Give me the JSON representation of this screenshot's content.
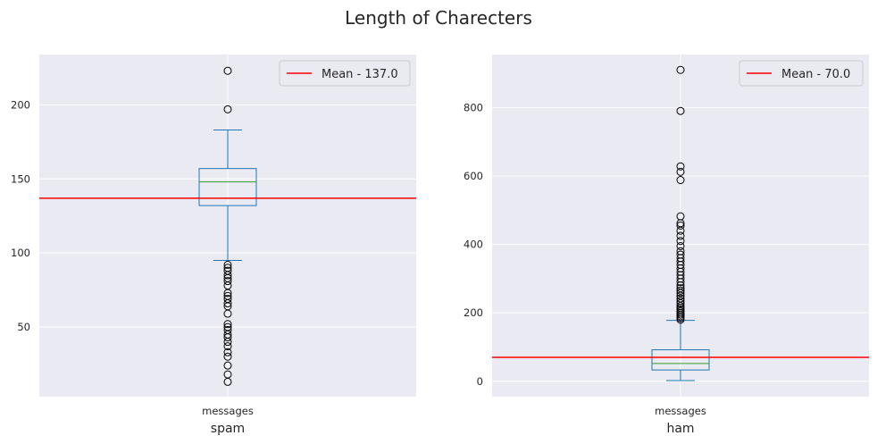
{
  "suptitle": "Length of Charecters",
  "chart_data": [
    {
      "type": "box",
      "category": "messages",
      "xlabel": "spam",
      "ylim": [
        3,
        234
      ],
      "yticks": [
        50,
        100,
        150,
        200
      ],
      "box": {
        "whisker_low": 95,
        "q1": 132,
        "median": 148,
        "q3": 157,
        "whisker_high": 183
      },
      "outliers": [
        13,
        18,
        24,
        30,
        33,
        37,
        40,
        43,
        45,
        48,
        50,
        52,
        59,
        64,
        66,
        69,
        71,
        73,
        78,
        81,
        83,
        85,
        88,
        90,
        92,
        197,
        223
      ],
      "mean_line": {
        "value": 137.0,
        "label": "Mean - 137.0",
        "color": "#ff0000"
      },
      "legend_position": "top-right",
      "grid": true
    },
    {
      "type": "box",
      "category": "messages",
      "xlabel": "ham",
      "ylim": [
        -45,
        955
      ],
      "yticks": [
        0,
        200,
        400,
        600,
        800
      ],
      "box": {
        "whisker_low": 2,
        "q1": 33,
        "median": 52,
        "q3": 92,
        "whisker_high": 178
      },
      "outliers": [
        180,
        185,
        190,
        195,
        200,
        205,
        210,
        215,
        220,
        228,
        235,
        242,
        250,
        258,
        265,
        272,
        280,
        290,
        300,
        310,
        320,
        330,
        340,
        350,
        360,
        370,
        380,
        395,
        410,
        425,
        440,
        455,
        462,
        482,
        588,
        612,
        628,
        790,
        910
      ],
      "mean_line": {
        "value": 70.0,
        "label": "Mean - 70.0",
        "color": "#ff0000"
      },
      "legend_position": "top-right",
      "grid": true
    }
  ]
}
